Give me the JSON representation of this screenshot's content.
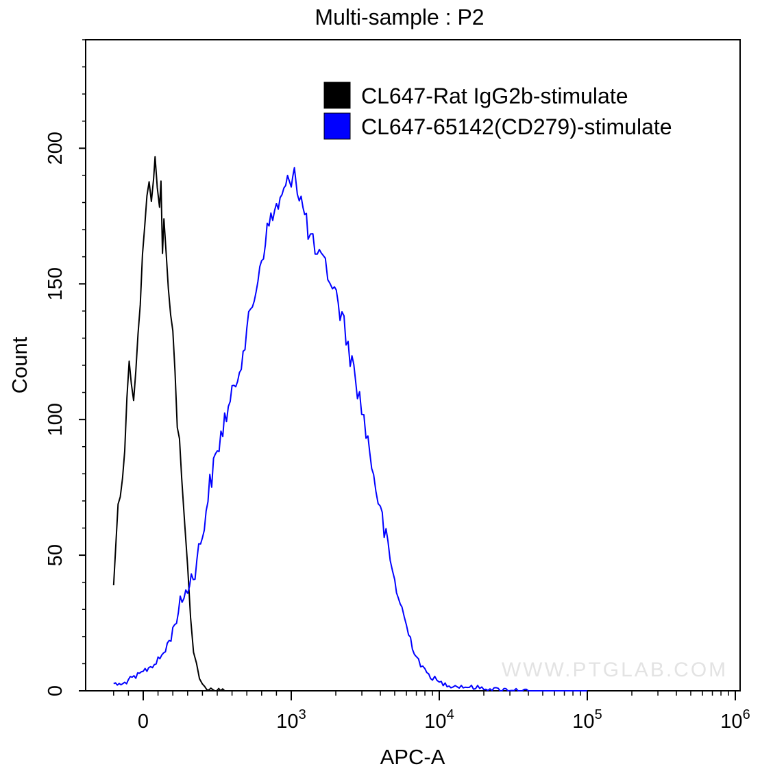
{
  "chart_data": {
    "type": "line",
    "title": "Multi-sample : P2",
    "xlabel": "APC-A",
    "ylabel": "Count",
    "x_scale": "biexponential",
    "ylim": [
      0,
      240
    ],
    "y_ticks": [
      0,
      50,
      100,
      150,
      200
    ],
    "x_ticks": [
      {
        "label": "0",
        "value": 0
      },
      {
        "label": "10",
        "sup": "3",
        "value": 1000
      },
      {
        "label": "10",
        "sup": "4",
        "value": 10000
      },
      {
        "label": "10",
        "sup": "5",
        "value": 100000
      },
      {
        "label": "10",
        "sup": "6",
        "value": 1000000
      }
    ],
    "grid": false,
    "legend_position": "top-right",
    "watermark": "WWW.PTGLAB.COM",
    "series": [
      {
        "name": "CL647-Rat IgG2b-stimulate",
        "color": "#000000",
        "points": [
          [
            -200,
            40
          ],
          [
            -185,
            52
          ],
          [
            -170,
            70
          ],
          [
            -155,
            76
          ],
          [
            -140,
            80
          ],
          [
            -125,
            90
          ],
          [
            -110,
            105
          ],
          [
            -95,
            125
          ],
          [
            -80,
            115
          ],
          [
            -65,
            110
          ],
          [
            -50,
            120
          ],
          [
            -35,
            130
          ],
          [
            -20,
            145
          ],
          [
            -5,
            158
          ],
          [
            10,
            172
          ],
          [
            25,
            180
          ],
          [
            40,
            185
          ],
          [
            55,
            183
          ],
          [
            70,
            192
          ],
          [
            80,
            200
          ],
          [
            95,
            182
          ],
          [
            110,
            178
          ],
          [
            120,
            190
          ],
          [
            130,
            160
          ],
          [
            140,
            172
          ],
          [
            155,
            160
          ],
          [
            170,
            152
          ],
          [
            185,
            142
          ],
          [
            200,
            132
          ],
          [
            215,
            117
          ],
          [
            230,
            100
          ],
          [
            245,
            90
          ],
          [
            260,
            75
          ],
          [
            280,
            60
          ],
          [
            300,
            45
          ],
          [
            320,
            27
          ],
          [
            340,
            16
          ],
          [
            360,
            10
          ],
          [
            380,
            5
          ],
          [
            400,
            2
          ],
          [
            430,
            1
          ],
          [
            470,
            0.5
          ],
          [
            550,
            0
          ]
        ]
      },
      {
        "name": "CL647-65142(CD279)-stimulate",
        "color": "#0000ff",
        "points": [
          [
            -200,
            3
          ],
          [
            -150,
            2
          ],
          [
            -100,
            4
          ],
          [
            -50,
            5
          ],
          [
            0,
            7
          ],
          [
            50,
            9
          ],
          [
            100,
            11
          ],
          [
            150,
            15
          ],
          [
            200,
            22
          ],
          [
            250,
            32
          ],
          [
            300,
            38
          ],
          [
            350,
            45
          ],
          [
            400,
            58
          ],
          [
            450,
            76
          ],
          [
            500,
            88
          ],
          [
            550,
            100
          ],
          [
            600,
            108
          ],
          [
            650,
            120
          ],
          [
            700,
            132
          ],
          [
            750,
            145
          ],
          [
            800,
            160
          ],
          [
            850,
            172
          ],
          [
            900,
            178
          ],
          [
            950,
            183
          ],
          [
            1000,
            190
          ],
          [
            1050,
            193
          ],
          [
            1100,
            186
          ],
          [
            1200,
            178
          ],
          [
            1300,
            170
          ],
          [
            1400,
            164
          ],
          [
            1500,
            160
          ],
          [
            1700,
            156
          ],
          [
            1900,
            150
          ],
          [
            2200,
            138
          ],
          [
            2500,
            124
          ],
          [
            2800,
            112
          ],
          [
            3200,
            96
          ],
          [
            3600,
            80
          ],
          [
            4000,
            66
          ],
          [
            4500,
            52
          ],
          [
            5000,
            40
          ],
          [
            5600,
            30
          ],
          [
            6200,
            21
          ],
          [
            7000,
            13
          ],
          [
            8000,
            7
          ],
          [
            9000,
            5
          ],
          [
            10000,
            3
          ],
          [
            12000,
            2
          ],
          [
            15000,
            1.5
          ],
          [
            20000,
            1
          ],
          [
            25000,
            0.5
          ],
          [
            30000,
            0.5
          ],
          [
            40000,
            0
          ]
        ]
      }
    ]
  }
}
